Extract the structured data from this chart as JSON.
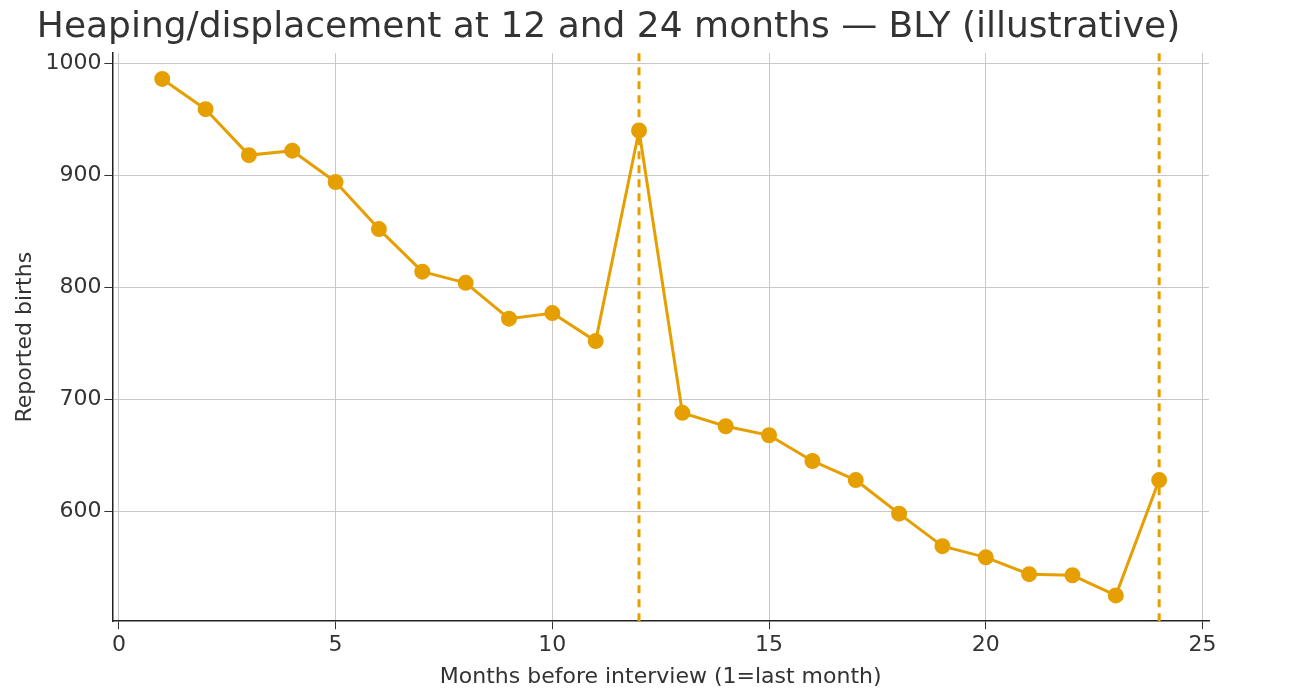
{
  "chart_data": {
    "type": "line",
    "title": "Heaping/displacement at 12 and 24 months — BLY (illustrative)",
    "xlabel": "Months before interview (1=last month)",
    "ylabel": "Reported births",
    "x": [
      1,
      2,
      3,
      4,
      5,
      6,
      7,
      8,
      9,
      10,
      11,
      12,
      13,
      14,
      15,
      16,
      17,
      18,
      19,
      20,
      21,
      22,
      23,
      24
    ],
    "series": [
      {
        "color": "#e69f00",
        "values": [
          986,
          959,
          918,
          922,
          894,
          852,
          814,
          804,
          772,
          777,
          752,
          940,
          688,
          676,
          668,
          645,
          628,
          598,
          569,
          559,
          544,
          543,
          525,
          628
        ]
      }
    ],
    "xlim": [
      -0.15,
      25.15
    ],
    "xticks": [
      0,
      5,
      10,
      15,
      20,
      25
    ],
    "ylim": [
      502,
      1009
    ],
    "yticks": [
      600,
      700,
      800,
      900,
      1000
    ],
    "ref_lines": [
      {
        "axis": "x",
        "value": 12,
        "color": "#e69f00",
        "line_style": "dashed"
      },
      {
        "axis": "x",
        "value": 24,
        "color": "#e69f00",
        "line_style": "dashed"
      }
    ],
    "grid": true,
    "marker": "circle",
    "line_style": "solid",
    "legend": false
  }
}
